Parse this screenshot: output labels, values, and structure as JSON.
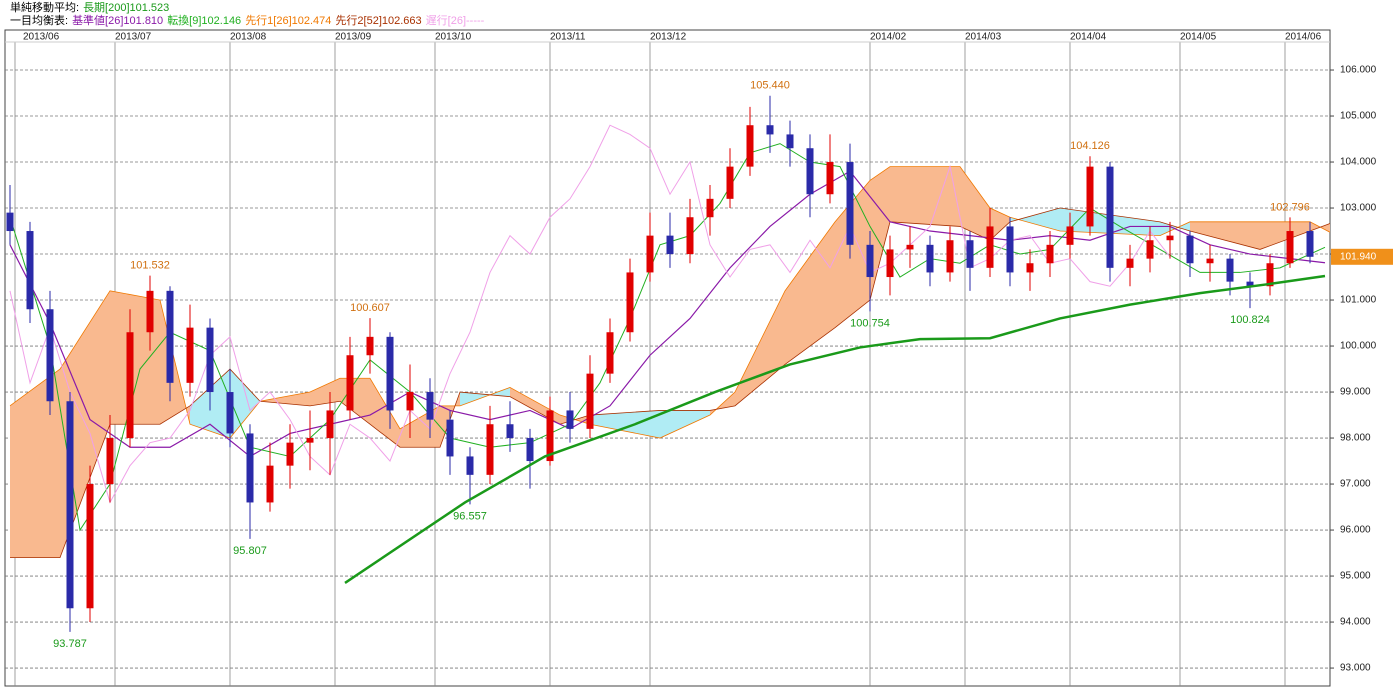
{
  "chart_data": {
    "type": "candlestick",
    "sma": {
      "title": "単純移動平均:",
      "series": [
        {
          "name": "長期[200]101.523",
          "color": "#1a9a1a",
          "width": 2.5,
          "x": [
            67,
            91,
            107,
            125,
            141,
            156,
            170,
            182,
            196,
            210,
            224,
            238,
            252,
            263
          ],
          "values": [
            94.85,
            96.6,
            97.6,
            98.3,
            99.0,
            99.6,
            99.97,
            100.15,
            100.17,
            100.6,
            100.9,
            101.15,
            101.35,
            101.523
          ]
        }
      ]
    },
    "ichimoku": {
      "title": "一目均衡表:",
      "series": [
        {
          "name": "基準値[26]101.810",
          "color": "#8a1aa8",
          "width": 1.2,
          "x": [
            0,
            8,
            16,
            24,
            32,
            40,
            48,
            56,
            64,
            72,
            80,
            88,
            96,
            104,
            112,
            120,
            128,
            136,
            144,
            152,
            160,
            168,
            176,
            184,
            192,
            200,
            208,
            216,
            224,
            232,
            240,
            248,
            256,
            263
          ],
          "values": [
            102.2,
            100.5,
            98.4,
            97.8,
            97.8,
            98.3,
            97.6,
            98.1,
            98.3,
            98.5,
            99.0,
            98.6,
            98.4,
            98.6,
            98.2,
            98.7,
            99.8,
            100.6,
            101.7,
            102.6,
            103.3,
            103.8,
            102.7,
            102.5,
            102.4,
            102.3,
            102.4,
            102.3,
            102.6,
            102.6,
            102.2,
            102.0,
            101.9,
            101.81
          ]
        },
        {
          "name": "転換[9]102.146",
          "color": "#22b022",
          "width": 1,
          "x": [
            0,
            8,
            14,
            20,
            26,
            32,
            40,
            48,
            56,
            64,
            72,
            80,
            88,
            96,
            104,
            112,
            118,
            124,
            130,
            136,
            142,
            148,
            154,
            160,
            166,
            172,
            178,
            184,
            190,
            196,
            202,
            208,
            216,
            222,
            230,
            238,
            246,
            254,
            263
          ],
          "values": [
            102.8,
            100.0,
            96.0,
            97.0,
            99.5,
            100.3,
            99.9,
            97.8,
            97.6,
            98.4,
            99.7,
            99.0,
            98.0,
            97.8,
            97.9,
            98.3,
            99.2,
            100.6,
            102.2,
            102.4,
            103.1,
            104.2,
            104.4,
            104.0,
            103.9,
            102.6,
            101.5,
            101.9,
            101.8,
            102.2,
            102.0,
            102.1,
            103.0,
            102.6,
            102.1,
            101.6,
            101.6,
            101.7,
            102.146
          ]
        },
        {
          "name": "遅行[26]-----",
          "color": "#f0a0e8",
          "width": 1,
          "x": [
            0,
            4,
            8,
            12,
            16,
            20,
            24,
            28,
            32,
            36,
            40,
            44,
            48,
            52,
            56,
            60,
            64,
            68,
            72,
            76,
            80,
            84,
            88,
            92,
            96,
            100,
            104,
            108,
            112,
            116,
            120,
            124,
            128,
            132,
            136,
            140,
            144,
            148,
            152,
            156,
            160,
            164,
            168,
            172,
            176,
            180,
            184,
            188,
            192,
            196,
            200,
            204,
            208,
            212,
            216,
            220,
            224,
            228,
            232
          ],
          "values": [
            101.2,
            99.2,
            100.4,
            99.0,
            98.1,
            96.6,
            97.4,
            97.9,
            98.0,
            98.6,
            99.8,
            100.2,
            98.6,
            99.0,
            98.4,
            97.6,
            97.2,
            98.3,
            98.0,
            97.5,
            98.6,
            98.2,
            99.4,
            100.3,
            101.6,
            102.4,
            102.0,
            102.8,
            103.2,
            103.9,
            104.8,
            104.6,
            104.3,
            103.3,
            104.0,
            102.2,
            101.5,
            102.1,
            102.2,
            101.6,
            102.3,
            101.7,
            102.6,
            101.6,
            101.8,
            102.2,
            102.6,
            103.9,
            101.7,
            101.9,
            102.3,
            102.4,
            101.8,
            101.9,
            101.4,
            101.3,
            101.8,
            102.5,
            101.94
          ]
        }
      ],
      "cloud": {
        "span1_name": "先行1[26]102.474",
        "span1_color": "#f07800",
        "span2_name": "先行2[52]102.663",
        "span2_color": "#a83000",
        "up_color": "#f9b98f",
        "down_color": "#b0ecf4",
        "x": [
          0,
          10,
          20,
          30,
          36,
          44,
          50,
          60,
          66,
          72,
          78,
          86,
          90,
          100,
          110,
          116,
          130,
          140,
          145,
          155,
          165,
          172,
          176,
          190,
          196,
          200,
          210,
          230,
          236,
          250,
          260,
          264
        ],
        "span1": [
          98.7,
          99.5,
          101.2,
          101.0,
          98.3,
          98.0,
          98.8,
          99.0,
          99.3,
          99.3,
          98.2,
          98.7,
          98.7,
          99.1,
          98.5,
          98.3,
          98.0,
          98.5,
          99.0,
          101.2,
          102.7,
          103.6,
          103.9,
          103.9,
          103.0,
          102.8,
          102.5,
          102.4,
          102.7,
          102.7,
          102.7,
          102.474
        ],
        "span2": [
          95.4,
          95.4,
          98.3,
          98.3,
          98.7,
          99.5,
          98.8,
          98.7,
          98.8,
          98.3,
          97.8,
          97.8,
          99.0,
          98.9,
          98.3,
          98.5,
          98.6,
          98.6,
          98.7,
          99.6,
          100.4,
          101.0,
          102.7,
          102.6,
          102.3,
          102.7,
          103.0,
          102.7,
          102.5,
          102.1,
          102.5,
          102.663
        ]
      }
    },
    "x": [
      0,
      4,
      8,
      12,
      16,
      20,
      24,
      28,
      32,
      36,
      40,
      44,
      48,
      52,
      56,
      60,
      64,
      68,
      72,
      76,
      80,
      84,
      88,
      92,
      96,
      100,
      104,
      108,
      112,
      116,
      120,
      124,
      128,
      132,
      136,
      140,
      144,
      148,
      152,
      156,
      160,
      164,
      168,
      172,
      176,
      180,
      184,
      188,
      192,
      196,
      200,
      204,
      208,
      212,
      216,
      220,
      224,
      228,
      232,
      236,
      240,
      244,
      248,
      252,
      256,
      260
    ],
    "open": [
      102.9,
      102.5,
      100.8,
      98.8,
      94.3,
      97.0,
      98.0,
      100.3,
      101.2,
      99.2,
      100.4,
      99.0,
      98.1,
      96.6,
      97.4,
      97.9,
      98.0,
      98.6,
      99.8,
      100.2,
      98.6,
      99.0,
      98.4,
      97.6,
      97.2,
      98.3,
      98.0,
      97.5,
      98.6,
      98.2,
      99.4,
      100.3,
      101.6,
      102.4,
      102.0,
      102.8,
      103.2,
      103.9,
      104.8,
      104.6,
      104.3,
      103.3,
      104.0,
      102.2,
      101.5,
      102.1,
      102.2,
      101.6,
      102.3,
      101.7,
      102.6,
      101.6,
      101.8,
      102.2,
      102.6,
      103.9,
      101.7,
      101.9,
      102.3,
      102.4,
      101.8,
      101.9,
      101.4,
      101.3,
      101.8,
      102.5
    ],
    "high": [
      103.5,
      102.7,
      101.2,
      99.0,
      97.4,
      98.5,
      100.8,
      101.532,
      101.3,
      100.9,
      100.6,
      99.5,
      98.3,
      97.9,
      98.3,
      98.6,
      99.0,
      100.2,
      100.607,
      100.3,
      99.6,
      99.3,
      98.6,
      97.8,
      98.7,
      98.8,
      98.2,
      98.9,
      99.0,
      99.8,
      100.6,
      101.9,
      102.9,
      102.9,
      103.2,
      103.5,
      104.3,
      105.2,
      105.44,
      104.9,
      104.6,
      104.6,
      104.4,
      102.5,
      102.4,
      102.6,
      102.4,
      102.6,
      102.5,
      103.0,
      102.8,
      102.1,
      102.5,
      102.9,
      104.126,
      104.0,
      102.2,
      102.6,
      102.7,
      102.5,
      102.2,
      102.0,
      101.6,
      102.0,
      102.796,
      102.7
    ],
    "low": [
      102.2,
      100.5,
      98.5,
      93.787,
      94.0,
      96.6,
      97.8,
      99.9,
      98.8,
      98.9,
      98.6,
      97.8,
      95.807,
      96.4,
      96.9,
      97.3,
      97.2,
      98.4,
      99.4,
      98.2,
      98.0,
      98.0,
      97.2,
      96.557,
      97.0,
      97.7,
      96.9,
      97.4,
      97.9,
      98.0,
      99.2,
      100.1,
      101.4,
      101.7,
      101.8,
      102.4,
      103.0,
      103.7,
      104.2,
      103.9,
      102.8,
      103.1,
      101.9,
      100.754,
      101.1,
      101.7,
      101.3,
      101.4,
      101.2,
      101.5,
      101.3,
      101.2,
      101.5,
      101.9,
      102.4,
      101.4,
      101.3,
      101.6,
      101.9,
      101.5,
      101.4,
      101.1,
      100.824,
      101.1,
      101.7,
      101.8
    ],
    "close": [
      102.5,
      100.8,
      98.8,
      94.3,
      97.0,
      98.0,
      100.3,
      101.2,
      99.2,
      100.4,
      99.0,
      98.1,
      96.6,
      97.4,
      97.9,
      98.0,
      98.6,
      99.8,
      100.2,
      98.6,
      99.0,
      98.4,
      97.6,
      97.2,
      98.3,
      98.0,
      97.5,
      98.6,
      98.2,
      99.4,
      100.3,
      101.6,
      102.4,
      102.0,
      102.8,
      103.2,
      103.9,
      104.8,
      104.6,
      104.3,
      103.3,
      104.0,
      102.2,
      101.5,
      102.1,
      102.2,
      101.6,
      102.3,
      101.7,
      102.6,
      101.6,
      101.8,
      102.2,
      102.6,
      103.9,
      101.7,
      101.9,
      102.3,
      102.4,
      101.8,
      101.9,
      101.4,
      101.3,
      101.8,
      102.5,
      101.94
    ],
    "up_color": "#e00000",
    "down_color": "#2a2aa8",
    "annotations": [
      {
        "label": "101.532",
        "x": 28,
        "y": 101.532,
        "kind": "high"
      },
      {
        "label": "93.787",
        "x": 12,
        "y": 93.787,
        "kind": "low"
      },
      {
        "label": "95.807",
        "x": 48,
        "y": 95.807,
        "kind": "low"
      },
      {
        "label": "100.607",
        "x": 72,
        "y": 100.607,
        "kind": "high"
      },
      {
        "label": "96.557",
        "x": 92,
        "y": 96.557,
        "kind": "low"
      },
      {
        "label": "105.440",
        "x": 152,
        "y": 105.44,
        "kind": "high"
      },
      {
        "label": "100.754",
        "x": 172,
        "y": 100.754,
        "kind": "low"
      },
      {
        "label": "104.126",
        "x": 216,
        "y": 104.126,
        "kind": "high"
      },
      {
        "label": "100.824",
        "x": 248,
        "y": 100.824,
        "kind": "low"
      },
      {
        "label": "102.796",
        "x": 256,
        "y": 102.796,
        "kind": "high"
      }
    ],
    "high_color": "#d07010",
    "low_color": "#1a9a1a",
    "last_price": {
      "value": 101.94,
      "label": "101.940",
      "color": "#f0901a"
    },
    "xlim": [
      -1,
      264
    ],
    "xticks": [
      {
        "value": 1,
        "label": "2013/06"
      },
      {
        "value": 21,
        "label": "2013/07"
      },
      {
        "value": 44,
        "label": "2013/08"
      },
      {
        "value": 65,
        "label": "2013/09"
      },
      {
        "value": 85,
        "label": "2013/10"
      },
      {
        "value": 108,
        "label": "2013/11"
      },
      {
        "value": 128,
        "label": "2013/12"
      },
      {
        "value": 172,
        "label": "2014/02"
      },
      {
        "value": 191,
        "label": "2014/03"
      },
      {
        "value": 212,
        "label": "2014/04"
      },
      {
        "value": 234,
        "label": "2014/05"
      },
      {
        "value": 255,
        "label": "2014/06"
      }
    ],
    "ylim": [
      92.61,
      106.87
    ],
    "yticks": [
      {
        "value": 93,
        "label": "93.000"
      },
      {
        "value": 94,
        "label": "94.000"
      },
      {
        "value": 95,
        "label": "95.000"
      },
      {
        "value": 96,
        "label": "96.000"
      },
      {
        "value": 97,
        "label": "97.000"
      },
      {
        "value": 98,
        "label": "98.000"
      },
      {
        "value": 99,
        "label": "99.000"
      },
      {
        "value": 100,
        "label": "100.000"
      },
      {
        "value": 101,
        "label": "101.000"
      },
      {
        "value": 102,
        "label": "102.000"
      },
      {
        "value": 103,
        "label": "103.000"
      },
      {
        "value": 104,
        "label": "104.000"
      },
      {
        "value": 105,
        "label": "105.000"
      },
      {
        "value": 106,
        "label": "106.000"
      }
    ],
    "grid": true
  }
}
